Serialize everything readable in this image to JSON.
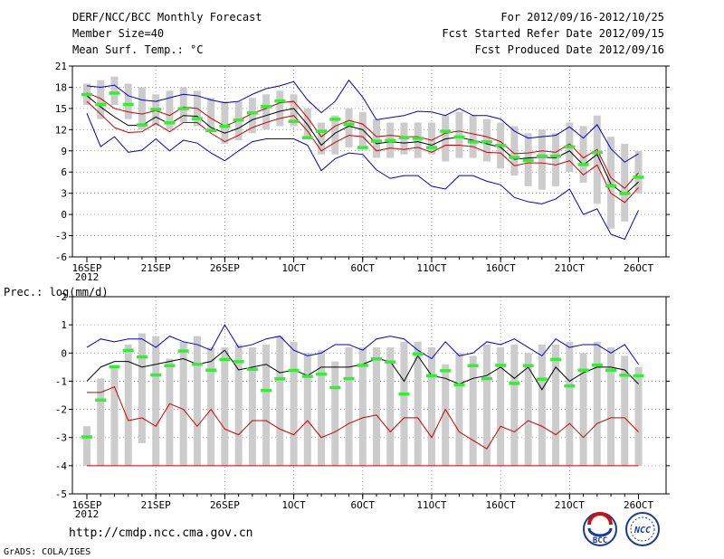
{
  "header": {
    "left": [
      "DERF/NCC/BCC Monthly Forecast",
      "Member Size=40",
      "Mean Surf. Temp.: °C"
    ],
    "right": [
      "For 2012/09/16-2012/10/25",
      "Fcst Started Refer Date 2012/09/15",
      "Fcst Produced Date 2012/09/16"
    ]
  },
  "footer": {
    "url": "http://cmdp.ncc.cma.gov.cn",
    "credit": "GrADS: COLA/IGES",
    "logo_left": "BCC",
    "logo_right": "NCC"
  },
  "colors": {
    "envelope": "#0000cc",
    "quantile": "#cc0000",
    "mean": "#000000",
    "bar": "#cccccc",
    "marker": "#33ee33",
    "grid": "#888888"
  },
  "chart_data": [
    {
      "type": "line",
      "title": "Mean Surf. Temp.: °C",
      "ylim": [
        -6,
        21
      ],
      "yticks": [
        -6,
        -3,
        0,
        3,
        6,
        9,
        12,
        15,
        18,
        21
      ],
      "xticks": [
        {
          "day": 0,
          "label": "16SEP",
          "sub": "2012"
        },
        {
          "day": 5,
          "label": "21SEP"
        },
        {
          "day": 10,
          "label": "26SEP"
        },
        {
          "day": 15,
          "label": "1OCT"
        },
        {
          "day": 20,
          "label": "6OCT"
        },
        {
          "day": 25,
          "label": "11OCT"
        },
        {
          "day": 30,
          "label": "16OCT"
        },
        {
          "day": 35,
          "label": "21OCT"
        },
        {
          "day": 40,
          "label": "26OCT"
        }
      ],
      "bars": [
        [
          15.5,
          18.5
        ],
        [
          13.5,
          19
        ],
        [
          15.5,
          19.5
        ],
        [
          13.5,
          18.5
        ],
        [
          12,
          18
        ],
        [
          12.5,
          17
        ],
        [
          12,
          17.5
        ],
        [
          13,
          18
        ],
        [
          12.5,
          17.5
        ],
        [
          12,
          16.5
        ],
        [
          10,
          16
        ],
        [
          10.5,
          16
        ],
        [
          11.5,
          16.5
        ],
        [
          12,
          17
        ],
        [
          12.5,
          17.5
        ],
        [
          12.5,
          17
        ],
        [
          11,
          15
        ],
        [
          8.5,
          13
        ],
        [
          8.5,
          14
        ],
        [
          9.5,
          15
        ],
        [
          9.5,
          14.5
        ],
        [
          8,
          13.5
        ],
        [
          8,
          13
        ],
        [
          8.5,
          13
        ],
        [
          8,
          13
        ],
        [
          8.5,
          13
        ],
        [
          7.5,
          14
        ],
        [
          8,
          14.5
        ],
        [
          8,
          14
        ],
        [
          7.5,
          13.5
        ],
        [
          6.5,
          13
        ],
        [
          5.5,
          12.5
        ],
        [
          4,
          11.5
        ],
        [
          3.5,
          12
        ],
        [
          4,
          11.5
        ],
        [
          6,
          13
        ],
        [
          4.5,
          12.5
        ],
        [
          1.5,
          14
        ],
        [
          -2,
          11
        ],
        [
          -1,
          10
        ],
        [
          3,
          9
        ]
      ],
      "markers": [
        17,
        15.6,
        17.2,
        15.6,
        12.7,
        14.9,
        13,
        15,
        13.6,
        11.9,
        12.5,
        13.4,
        14.4,
        15.3,
        16.1,
        13.2,
        10.9,
        11.8,
        13.5,
        12.8,
        9.5,
        10.4,
        10.5,
        10.9,
        10.8,
        9.5,
        11.8,
        11,
        10.3,
        10.3,
        9.8,
        8.1,
        7.7,
        8.3,
        8.3,
        9.6,
        7.1,
        8.8,
        4.1,
        3,
        5.3
      ],
      "series": [
        {
          "name": "upper",
          "values": [
            18.2,
            18,
            18.3,
            16.8,
            16.2,
            16,
            16.5,
            17,
            16.8,
            16.2,
            15.8,
            16,
            17,
            17.8,
            18.2,
            18.8,
            16.2,
            14.4,
            16,
            19,
            16.6,
            13.4,
            13.7,
            14,
            14.6,
            14.5,
            14,
            15,
            14,
            14,
            13.5,
            11.8,
            10.8,
            11,
            11.2,
            12.4,
            10.8,
            12.7,
            9.3,
            7.4,
            8.6
          ]
        },
        {
          "name": "q_high",
          "values": [
            17.2,
            16.4,
            15,
            14.5,
            14.2,
            14.7,
            14,
            15.2,
            15,
            13.6,
            12.5,
            13.3,
            14.3,
            15,
            15.8,
            16,
            13.7,
            11,
            12.5,
            13.3,
            12.8,
            11,
            11.2,
            11,
            11,
            10.5,
            11.5,
            11.8,
            11.4,
            11,
            10.3,
            8.6,
            8.7,
            9,
            8.8,
            10,
            8,
            9.2,
            5.2,
            3.7,
            5.9
          ]
        },
        {
          "name": "mean",
          "values": [
            16.8,
            15.2,
            13.8,
            12.6,
            12.6,
            13.8,
            12.8,
            14,
            13.9,
            12.3,
            11.5,
            12.2,
            13.4,
            14,
            14.6,
            15,
            12.7,
            9.8,
            11.5,
            12.5,
            12,
            10,
            10.3,
            10.1,
            10.3,
            9.8,
            10.7,
            10.9,
            10.5,
            10,
            9.5,
            7.8,
            8,
            8.1,
            8,
            9,
            7,
            8.5,
            4.3,
            2.8,
            4.6
          ]
        },
        {
          "name": "q_low",
          "values": [
            16,
            14.2,
            12.3,
            11.6,
            11.7,
            12.9,
            11.7,
            13,
            13,
            11.5,
            10.3,
            11.2,
            12.3,
            13,
            13.6,
            14,
            11.8,
            9,
            10.2,
            11.2,
            11,
            9,
            9.4,
            9.2,
            9.5,
            8.8,
            9.8,
            9.8,
            9.6,
            8.8,
            8.7,
            6.9,
            7.3,
            7.3,
            7,
            7.6,
            5.6,
            7,
            3,
            1.7,
            3.8
          ]
        },
        {
          "name": "lower",
          "values": [
            14.3,
            9.6,
            11,
            8.8,
            9.1,
            10.7,
            9,
            10.5,
            10.1,
            8.7,
            7.6,
            9,
            10.3,
            10.7,
            10.7,
            10.7,
            9.8,
            6.2,
            7.9,
            8.7,
            8.5,
            6.3,
            5.1,
            5.5,
            5.5,
            4,
            3.6,
            5.5,
            5.5,
            4.7,
            4.2,
            2.4,
            1.8,
            1.5,
            2.2,
            3.6,
            0,
            0.8,
            -2.8,
            -3.5,
            0.6
          ]
        }
      ]
    },
    {
      "type": "line",
      "title": "Prec.: log(mm/d)",
      "ylim": [
        -5,
        2
      ],
      "yticks": [
        -5,
        -4,
        -3,
        -2,
        -1,
        0,
        1,
        2
      ],
      "xticks": [
        {
          "day": 0,
          "label": "16SEP",
          "sub": "2012"
        },
        {
          "day": 5,
          "label": "21SEP"
        },
        {
          "day": 10,
          "label": "26SEP"
        },
        {
          "day": 15,
          "label": "1OCT"
        },
        {
          "day": 20,
          "label": "6OCT"
        },
        {
          "day": 25,
          "label": "11OCT"
        },
        {
          "day": 30,
          "label": "16OCT"
        },
        {
          "day": 35,
          "label": "21OCT"
        },
        {
          "day": 40,
          "label": "26OCT"
        }
      ],
      "bars": [
        [
          -4,
          -2.6
        ],
        [
          -4,
          -0.9
        ],
        [
          -4,
          -0.5
        ],
        [
          -4,
          0.3
        ],
        [
          -3.2,
          0.7
        ],
        [
          -4,
          0.6
        ],
        [
          -4,
          -0.2
        ],
        [
          -4,
          0.4
        ],
        [
          -4,
          0.6
        ],
        [
          -4,
          0.2
        ],
        [
          -4,
          0.2
        ],
        [
          -4,
          0.3
        ],
        [
          -4,
          0.2
        ],
        [
          -4,
          0.3
        ],
        [
          -4,
          0.6
        ],
        [
          -4,
          0.4
        ],
        [
          -4,
          0
        ],
        [
          -4,
          0.1
        ],
        [
          -4,
          -0.3
        ],
        [
          -4,
          0.2
        ],
        [
          -4,
          0.2
        ],
        [
          -4,
          0.2
        ],
        [
          -4,
          0.2
        ],
        [
          -4,
          0.4
        ],
        [
          -4,
          0.4
        ],
        [
          -4,
          0.2
        ],
        [
          -4,
          -0.4
        ],
        [
          -4,
          0
        ],
        [
          -4,
          -0.1
        ],
        [
          -4,
          0.3
        ],
        [
          -4,
          0.2
        ],
        [
          -4,
          0.3
        ],
        [
          -4,
          0
        ],
        [
          -4,
          0.3
        ],
        [
          -4,
          0.3
        ],
        [
          -4,
          0.4
        ],
        [
          -4,
          0
        ],
        [
          -4,
          0.4
        ],
        [
          -4,
          0.2
        ],
        [
          -4,
          -0.1
        ],
        [
          -4,
          -0.5
        ]
      ],
      "markers": [
        -2.97,
        -1.66,
        -0.48,
        0.1,
        -0.13,
        -0.77,
        -0.44,
        0.08,
        -0.39,
        -0.6,
        -0.22,
        -0.3,
        -0.57,
        -1.32,
        -0.91,
        -0.61,
        -0.82,
        -0.74,
        -1.22,
        -0.9,
        -0.43,
        -0.2,
        -0.31,
        -1.45,
        -0.02,
        -0.8,
        -0.62,
        -1.12,
        -0.44,
        -0.9,
        -0.43,
        -1.07,
        -0.44,
        -0.92,
        -0.22,
        -1.16,
        -0.6,
        -0.42,
        -0.6,
        -0.78,
        -0.8
      ],
      "series": [
        {
          "name": "upper",
          "values": [
            0.2,
            0.5,
            0.4,
            0.5,
            0.5,
            0.2,
            0.6,
            0.4,
            0.3,
            0.1,
            1,
            0.2,
            0.3,
            0.5,
            0.6,
            0.1,
            -0.1,
            0,
            0.3,
            0.3,
            0.1,
            0.5,
            0.6,
            0.5,
            0.1,
            -0.2,
            0.4,
            -0.1,
            0,
            0.4,
            0.3,
            0.5,
            0.2,
            -0.1,
            0.5,
            0.2,
            0.3,
            0.3,
            0,
            0.3,
            -0.4
          ]
        },
        {
          "name": "mean",
          "values": [
            -1,
            -0.5,
            -0.3,
            -0.3,
            -0.5,
            -0.4,
            -0.3,
            -0.2,
            -0.4,
            -0.3,
            0.1,
            -0.6,
            -0.5,
            -0.4,
            -0.7,
            -0.6,
            -0.8,
            -0.5,
            -0.5,
            -0.5,
            -0.4,
            -0.2,
            -0.3,
            -1,
            -0.1,
            -0.8,
            -0.9,
            -1.1,
            -0.9,
            -0.8,
            -0.5,
            -0.9,
            -0.5,
            -1.3,
            -0.5,
            -1,
            -0.7,
            -0.5,
            -0.5,
            -0.6,
            -1.1
          ]
        },
        {
          "name": "lower",
          "values": [
            -1.4,
            -1.4,
            -1.2,
            -2.4,
            -2.3,
            -2.6,
            -1.8,
            -2,
            -2.6,
            -2,
            -2.7,
            -2.9,
            -2.4,
            -2.4,
            -2.7,
            -2.9,
            -2.4,
            -3,
            -2.8,
            -2.5,
            -2.3,
            -2.2,
            -2.8,
            -2.3,
            -2.3,
            -3,
            -2,
            -2.8,
            -3.1,
            -3.4,
            -2.6,
            -2.8,
            -2.4,
            -2.6,
            -2.9,
            -2.5,
            -3,
            -2.5,
            -2.3,
            -2.3,
            -2.8
          ]
        },
        {
          "name": "floor",
          "values": [
            -4,
            -4,
            -4,
            -4,
            -4,
            -4,
            -4,
            -4,
            -4,
            -4,
            -4,
            -4,
            -4,
            -4,
            -4,
            -4,
            -4,
            -4,
            -4,
            -4,
            -4,
            -4,
            -4,
            -4,
            -4,
            -4,
            -4,
            -4,
            -4,
            -4,
            -4,
            -4,
            -4,
            -4,
            -4,
            -4,
            -4,
            -4,
            -4,
            -4,
            -4
          ]
        }
      ]
    }
  ]
}
